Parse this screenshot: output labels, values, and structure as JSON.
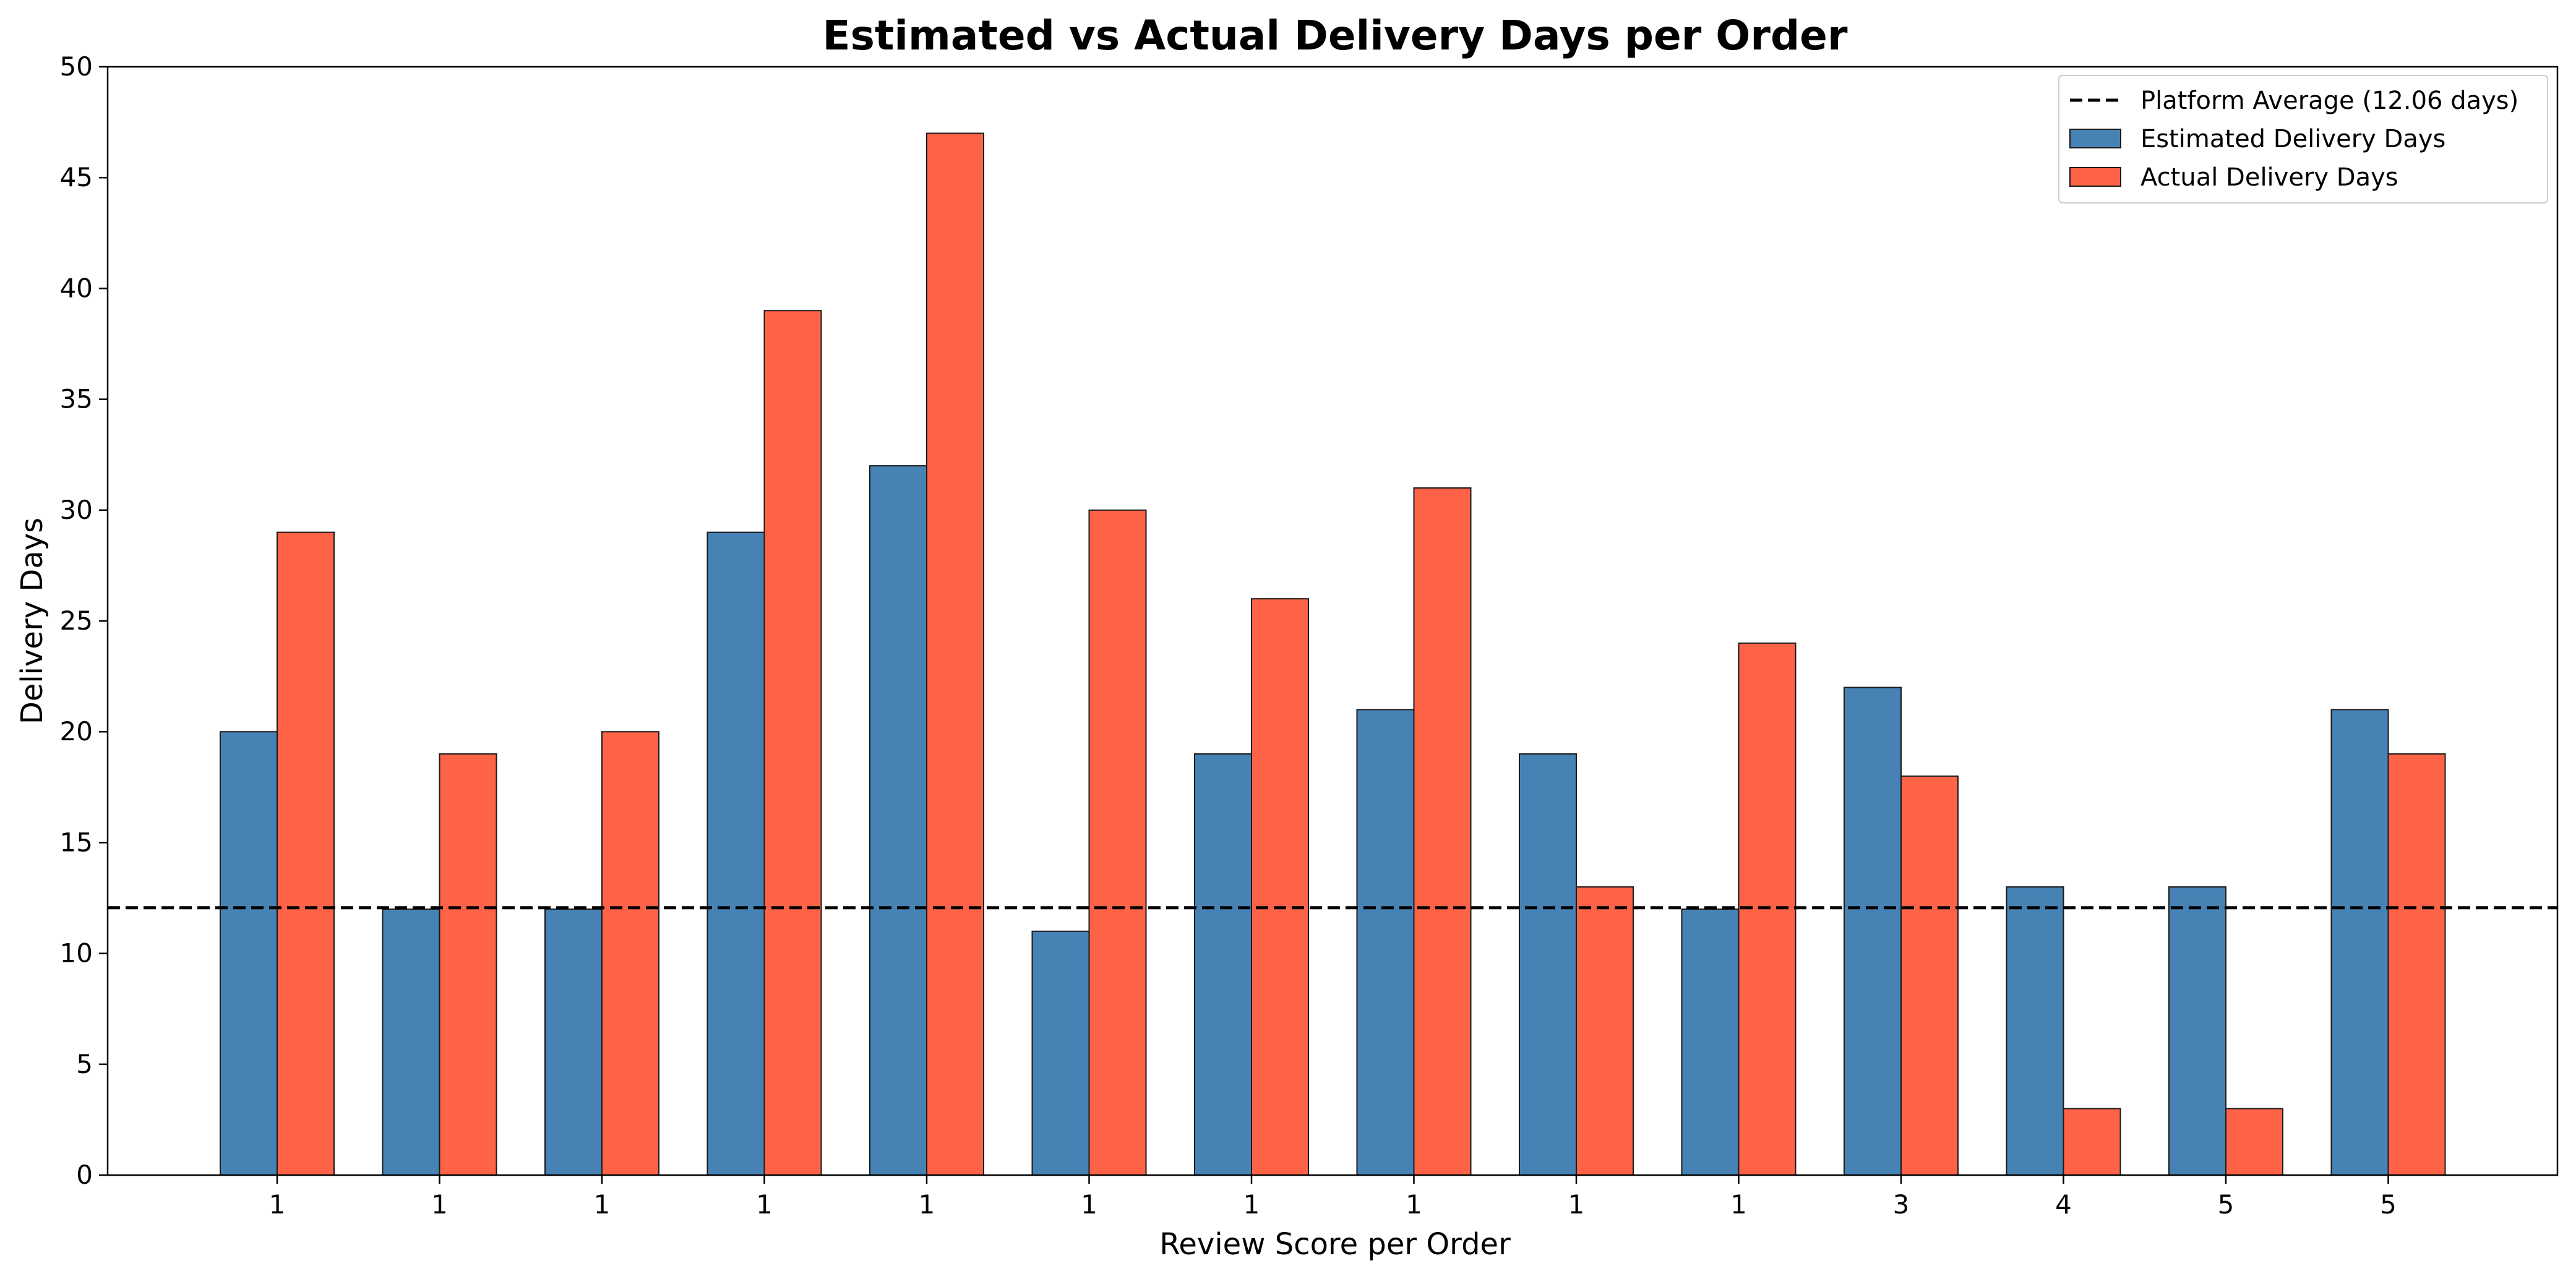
{
  "chart_data": {
    "type": "bar",
    "title": "Estimated vs Actual Delivery Days per Order",
    "xlabel": "Review Score per Order",
    "ylabel": "Delivery Days",
    "ylim": [
      0,
      50
    ],
    "yticks": [
      0,
      5,
      10,
      15,
      20,
      25,
      30,
      35,
      40,
      45,
      50
    ],
    "grid": false,
    "legend_position": "top-right",
    "categories": [
      "1",
      "1",
      "1",
      "1",
      "1",
      "1",
      "1",
      "1",
      "1",
      "1",
      "3",
      "4",
      "5",
      "5"
    ],
    "series": [
      {
        "name": "Estimated Delivery Days",
        "color": "#4682B4",
        "values": [
          20,
          12,
          12,
          29,
          32,
          11,
          19,
          21,
          19,
          12,
          22,
          13,
          13,
          21
        ]
      },
      {
        "name": "Actual Delivery Days",
        "color": "#FF6347",
        "values": [
          29,
          19,
          20,
          39,
          47,
          30,
          26,
          31,
          13,
          24,
          18,
          3,
          3,
          19
        ]
      }
    ],
    "reference_line": {
      "name": "Platform Average (12.06 days)",
      "value": 12.06,
      "color": "#000000",
      "style": "dashed"
    }
  }
}
